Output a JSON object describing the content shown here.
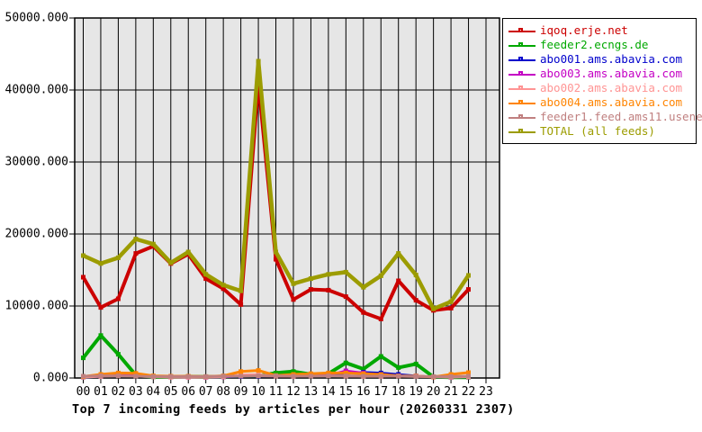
{
  "chart_data": {
    "type": "line",
    "title": "Top 7 incoming feeds by articles per hour (20260331 2307)",
    "ylabel": "",
    "xlabel": "",
    "ylim": [
      0,
      50000
    ],
    "grid": true,
    "legend_position": "outside-top-right",
    "plot_bg_color": "#e6e6e6",
    "ytick_values": [
      0,
      10000,
      20000,
      30000,
      40000,
      50000
    ],
    "ytick_labels": [
      "0.000",
      "10000.000",
      "20000.000",
      "30000.000",
      "40000.000",
      "50000.000"
    ],
    "x_categories": [
      "00",
      "01",
      "02",
      "03",
      "04",
      "05",
      "06",
      "07",
      "08",
      "09",
      "10",
      "11",
      "12",
      "13",
      "14",
      "15",
      "16",
      "17",
      "18",
      "19",
      "20",
      "21",
      "22",
      "23"
    ],
    "data_hours_plotted": 23,
    "series": [
      {
        "name": "iqoq.erje.net",
        "color": "#cc0000",
        "width": 4,
        "values": [
          14000,
          9800,
          11000,
          17300,
          18300,
          15900,
          17200,
          13800,
          12400,
          10200,
          41000,
          16500,
          10900,
          12300,
          12200,
          11300,
          9100,
          8200,
          13500,
          10800,
          9400,
          9700,
          12300
        ]
      },
      {
        "name": "feeder2.ecngs.de",
        "color": "#00a800",
        "width": 4,
        "values": [
          2800,
          5900,
          3300,
          400,
          150,
          150,
          200,
          150,
          200,
          300,
          300,
          700,
          900,
          500,
          600,
          2100,
          1250,
          3000,
          1450,
          1950,
          150,
          100,
          100
        ]
      },
      {
        "name": "abo001.ams.abavia.com",
        "color": "#0000cc",
        "width": 2.5,
        "values": [
          100,
          200,
          400,
          500,
          200,
          150,
          150,
          100,
          150,
          200,
          250,
          300,
          500,
          400,
          400,
          600,
          800,
          700,
          500,
          300,
          150,
          100,
          150
        ]
      },
      {
        "name": "abo003.ams.abavia.com",
        "color": "#c400c4",
        "width": 2.5,
        "values": [
          150,
          300,
          600,
          450,
          200,
          150,
          100,
          100,
          150,
          250,
          300,
          250,
          300,
          350,
          400,
          1000,
          700,
          400,
          300,
          250,
          150,
          100,
          150
        ]
      },
      {
        "name": "abo002.ams.abavia.com",
        "color": "#ff9494",
        "width": 2.5,
        "values": [
          100,
          200,
          300,
          250,
          150,
          100,
          100,
          100,
          150,
          450,
          500,
          250,
          200,
          250,
          300,
          250,
          200,
          200,
          250,
          300,
          150,
          100,
          150
        ]
      },
      {
        "name": "abo004.ams.abavia.com",
        "color": "#ff8400",
        "width": 3,
        "values": [
          200,
          500,
          700,
          650,
          300,
          250,
          250,
          200,
          300,
          900,
          1050,
          350,
          500,
          600,
          700,
          700,
          600,
          500,
          300,
          250,
          150,
          500,
          750
        ]
      },
      {
        "name": "feeder1.feed.ams11.usenet.farm",
        "color": "#c08080",
        "width": 3,
        "values": [
          250,
          300,
          300,
          250,
          200,
          200,
          200,
          200,
          250,
          250,
          300,
          300,
          250,
          250,
          300,
          300,
          250,
          250,
          250,
          200,
          200,
          200,
          250
        ]
      },
      {
        "name": "TOTAL (all feeds)",
        "color": "#9c9c00",
        "width": 4.5,
        "values": [
          17000,
          15900,
          16700,
          19300,
          18600,
          16000,
          17500,
          14400,
          12900,
          12100,
          44000,
          17500,
          13100,
          13800,
          14400,
          14700,
          12600,
          14200,
          17300,
          14300,
          9600,
          10600,
          14250
        ]
      }
    ]
  }
}
